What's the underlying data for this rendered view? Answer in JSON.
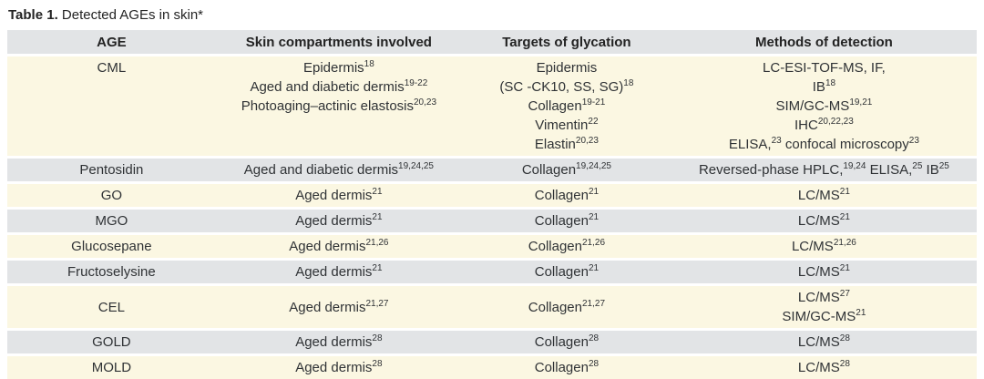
{
  "title": {
    "label": "Table 1.",
    "caption": "Detected AGEs in skin*"
  },
  "colors": {
    "row_gray": "#e2e4e6",
    "row_cream": "#fbf7e2",
    "text": "#2f3235",
    "background": "#ffffff"
  },
  "table": {
    "columns": [
      "AGE",
      "Skin compartments involved",
      "Targets of glycation",
      "Methods of detection"
    ],
    "rows": [
      {
        "age": "CML",
        "tone": "cream",
        "align_top": true,
        "compartments": [
          "Epidermis{18}",
          "Aged and diabetic dermis{19-22}",
          "Photoaging–actinic elastosis{20,23}"
        ],
        "targets": [
          "Epidermis",
          "(SC -CK10, SS, SG){18}",
          "Collagen{19-21}",
          "Vimentin{22}",
          "Elastin{20,23}"
        ],
        "methods": [
          "LC-ESI-TOF-MS, IF,",
          "IB{18}",
          "SIM/GC-MS{19,21}",
          "IHC{20,22,23}",
          "ELISA,{23} confocal microscopy{23}"
        ]
      },
      {
        "age": "Pentosidin",
        "tone": "gray",
        "align_top": false,
        "compartments": [
          "Aged and diabetic dermis{19,24,25}"
        ],
        "targets": [
          "Collagen{19,24,25}"
        ],
        "methods": [
          "Reversed-phase HPLC,{19,24} ELISA,{25} IB{25}"
        ]
      },
      {
        "age": "GO",
        "tone": "cream",
        "align_top": false,
        "compartments": [
          "Aged dermis{21}"
        ],
        "targets": [
          "Collagen{21}"
        ],
        "methods": [
          "LC/MS{21}"
        ]
      },
      {
        "age": "MGO",
        "tone": "gray",
        "align_top": false,
        "compartments": [
          "Aged dermis{21}"
        ],
        "targets": [
          "Collagen{21}"
        ],
        "methods": [
          "LC/MS{21}"
        ]
      },
      {
        "age": "Glucosepane",
        "tone": "cream",
        "align_top": false,
        "compartments": [
          "Aged dermis{21,26}"
        ],
        "targets": [
          "Collagen{21,26}"
        ],
        "methods": [
          "LC/MS{21,26}"
        ]
      },
      {
        "age": "Fructoselysine",
        "tone": "gray",
        "align_top": false,
        "compartments": [
          "Aged dermis{21}"
        ],
        "targets": [
          "Collagen{21}"
        ],
        "methods": [
          "LC/MS{21}"
        ]
      },
      {
        "age": "CEL",
        "tone": "cream",
        "align_top": false,
        "compartments": [
          "Aged dermis{21,27}"
        ],
        "targets": [
          "Collagen{21,27}"
        ],
        "methods": [
          "LC/MS{27}",
          "SIM/GC-MS{21}"
        ]
      },
      {
        "age": "GOLD",
        "tone": "gray",
        "align_top": false,
        "compartments": [
          "Aged dermis{28}"
        ],
        "targets": [
          "Collagen{28}"
        ],
        "methods": [
          "LC/MS{28}"
        ]
      },
      {
        "age": "MOLD",
        "tone": "cream",
        "align_top": false,
        "compartments": [
          "Aged dermis{28}"
        ],
        "targets": [
          "Collagen{28}"
        ],
        "methods": [
          "LC/MS{28}"
        ]
      }
    ]
  }
}
